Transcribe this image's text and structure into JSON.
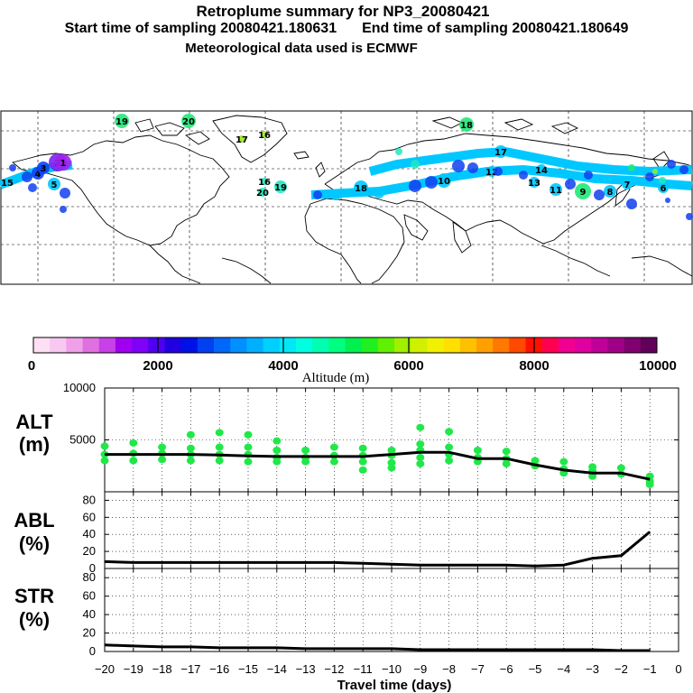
{
  "header": {
    "title": "Retroplume summary for NP3_20080421",
    "start_time": "Start time of sampling 20080421.180631",
    "end_time": "End time of sampling 20080421.180649",
    "met_data": "Meteorological data used is ECMWF"
  },
  "colorbar": {
    "title": "Altitude (m)",
    "tick_labels": [
      "0",
      "2000",
      "4000",
      "6000",
      "8000",
      "10000"
    ],
    "colors": [
      "#fde0f4",
      "#f8c8f0",
      "#f0a0e8",
      "#e070e0",
      "#c840e8",
      "#a000f0",
      "#8000f8",
      "#5000f0",
      "#2000e0",
      "#0010e8",
      "#0040f0",
      "#0068f8",
      "#0090ff",
      "#00b0ff",
      "#00d0ff",
      "#00e8f8",
      "#00ffe0",
      "#00ffb0",
      "#00ff80",
      "#00f050",
      "#20f020",
      "#60f000",
      "#a0f000",
      "#d0f000",
      "#f0f000",
      "#ffe000",
      "#ffc000",
      "#ffa000",
      "#ff7800",
      "#ff4800",
      "#ff1000",
      "#ff0050",
      "#f00090",
      "#e000a0",
      "#c00098",
      "#a00088",
      "#800070",
      "#600058"
    ]
  },
  "map_labels": [
    {
      "text": "19",
      "color": "#20e878"
    },
    {
      "text": "20",
      "color": "#20e878"
    },
    {
      "text": "18",
      "color": "#20e878"
    },
    {
      "text": "17",
      "color": "#a0e820"
    },
    {
      "text": "16",
      "color": "#a0e820"
    },
    {
      "text": "19",
      "color": "#20e8c0"
    },
    {
      "text": "20",
      "color": "#20e8c0"
    },
    {
      "text": "16",
      "color": "#20e8c0"
    },
    {
      "text": "15",
      "color": "#00c8ff"
    },
    {
      "text": "18",
      "color": "#00c8ff"
    },
    {
      "text": "17",
      "color": "#00c8ff"
    },
    {
      "text": "14",
      "color": "#00c8ff"
    },
    {
      "text": "13",
      "color": "#00c8ff"
    },
    {
      "text": "12",
      "color": "#00c8ff"
    },
    {
      "text": "11",
      "color": "#00c8ff"
    },
    {
      "text": "10",
      "color": "#00c8ff"
    },
    {
      "text": "9",
      "color": "#20e878"
    },
    {
      "text": "8",
      "color": "#00c8ff"
    },
    {
      "text": "7",
      "color": "#00c8ff"
    },
    {
      "text": "6",
      "color": "#00c8ff"
    },
    {
      "text": "5",
      "color": "#00c8ff"
    },
    {
      "text": "4",
      "color": "#1040f0"
    },
    {
      "text": "3",
      "color": "#1040f0"
    },
    {
      "text": "2",
      "color": "#8020f0"
    },
    {
      "text": "1",
      "color": "#a020f0"
    }
  ],
  "chart_data": [
    {
      "type": "line",
      "panel": "ALT",
      "ylabel": "ALT\n(m)",
      "ylabel_lines": [
        "ALT",
        "(m)"
      ],
      "ylim": [
        0,
        10000
      ],
      "yticks": [
        0,
        5000,
        10000
      ],
      "ytick_labels": [
        "5000",
        "10000"
      ],
      "x": [
        -20,
        -19,
        -18,
        -17,
        -16,
        -15,
        -14,
        -13,
        -12,
        -11,
        -10,
        -9,
        -8,
        -7,
        -6,
        -5,
        -4,
        -3,
        -2,
        -1
      ],
      "series": [
        {
          "name": "mean altitude",
          "values": [
            3600,
            3600,
            3600,
            3600,
            3550,
            3450,
            3400,
            3400,
            3400,
            3400,
            3600,
            3800,
            3800,
            3200,
            3200,
            2600,
            2100,
            1800,
            1800,
            1200
          ]
        }
      ],
      "scatter": {
        "name": "plume altitude distribution",
        "color": "#20e848",
        "points": [
          [
            -20,
            4400
          ],
          [
            -20,
            3600
          ],
          [
            -20,
            3000
          ],
          [
            -19,
            4700
          ],
          [
            -19,
            3700
          ],
          [
            -19,
            3000
          ],
          [
            -18,
            4300
          ],
          [
            -18,
            3700
          ],
          [
            -18,
            3100
          ],
          [
            -17,
            5500
          ],
          [
            -17,
            4200
          ],
          [
            -17,
            3600
          ],
          [
            -17,
            3000
          ],
          [
            -16,
            5700
          ],
          [
            -16,
            4300
          ],
          [
            -16,
            3600
          ],
          [
            -16,
            3000
          ],
          [
            -15,
            5500
          ],
          [
            -15,
            4300
          ],
          [
            -15,
            3600
          ],
          [
            -15,
            2900
          ],
          [
            -14,
            4900
          ],
          [
            -14,
            4000
          ],
          [
            -14,
            3300
          ],
          [
            -14,
            2900
          ],
          [
            -13,
            4000
          ],
          [
            -13,
            3300
          ],
          [
            -13,
            2900
          ],
          [
            -12,
            4300
          ],
          [
            -12,
            3500
          ],
          [
            -12,
            2900
          ],
          [
            -11,
            4200
          ],
          [
            -11,
            3500
          ],
          [
            -11,
            2900
          ],
          [
            -11,
            2100
          ],
          [
            -10,
            4000
          ],
          [
            -10,
            3500
          ],
          [
            -10,
            2800
          ],
          [
            -10,
            2300
          ],
          [
            -9,
            6200
          ],
          [
            -9,
            4600
          ],
          [
            -9,
            4000
          ],
          [
            -9,
            3300
          ],
          [
            -9,
            2700
          ],
          [
            -8,
            5800
          ],
          [
            -8,
            4300
          ],
          [
            -8,
            3600
          ],
          [
            -8,
            3000
          ],
          [
            -7,
            4000
          ],
          [
            -7,
            3300
          ],
          [
            -7,
            2900
          ],
          [
            -6,
            3900
          ],
          [
            -6,
            3200
          ],
          [
            -6,
            2700
          ],
          [
            -5,
            3000
          ],
          [
            -5,
            2500
          ],
          [
            -4,
            2900
          ],
          [
            -4,
            2200
          ],
          [
            -4,
            1800
          ],
          [
            -3,
            2400
          ],
          [
            -3,
            2000
          ],
          [
            -3,
            1500
          ],
          [
            -2,
            2300
          ],
          [
            -2,
            1700
          ],
          [
            -1,
            1500
          ],
          [
            -1,
            1000
          ],
          [
            -1,
            700
          ]
        ]
      }
    },
    {
      "type": "line",
      "panel": "ABL",
      "ylabel_lines": [
        "ABL",
        "(%)"
      ],
      "ylim": [
        0,
        90
      ],
      "yticks": [
        0,
        20,
        40,
        60,
        80
      ],
      "ytick_labels": [
        "0",
        "20",
        "40",
        "60",
        "80"
      ],
      "x": [
        -20,
        -19,
        -18,
        -17,
        -16,
        -15,
        -14,
        -13,
        -12,
        -11,
        -10,
        -9,
        -8,
        -7,
        -6,
        -5,
        -4,
        -3,
        -2,
        -1
      ],
      "series": [
        {
          "name": "ABL fraction",
          "values": [
            8,
            7,
            7,
            7,
            7,
            7,
            7,
            7,
            7,
            6,
            5,
            4,
            4,
            4,
            4,
            3,
            4,
            12,
            15,
            43
          ]
        }
      ]
    },
    {
      "type": "line",
      "panel": "STR",
      "ylabel_lines": [
        "STR",
        "(%)"
      ],
      "ylim": [
        0,
        90
      ],
      "yticks": [
        0,
        20,
        40,
        60,
        80
      ],
      "ytick_labels": [
        "0",
        "20",
        "40",
        "60",
        "80"
      ],
      "x": [
        -20,
        -19,
        -18,
        -17,
        -16,
        -15,
        -14,
        -13,
        -12,
        -11,
        -10,
        -9,
        -8,
        -7,
        -6,
        -5,
        -4,
        -3,
        -2,
        -1
      ],
      "series": [
        {
          "name": "stratospheric fraction",
          "values": [
            7,
            6,
            5,
            5,
            4,
            4,
            4,
            3,
            3,
            3,
            3,
            2,
            2,
            2,
            2,
            2,
            2,
            2,
            1,
            1
          ]
        }
      ]
    }
  ],
  "xaxis": {
    "label": "Travel time (days)",
    "ticks": [
      -20,
      -19,
      -18,
      -17,
      -16,
      -15,
      -14,
      -13,
      -12,
      -11,
      -10,
      -9,
      -8,
      -7,
      -6,
      -5,
      -4,
      -3,
      -2,
      -1,
      0
    ],
    "tick_labels": [
      "−20",
      "−19",
      "−18",
      "−17",
      "−16",
      "−15",
      "−14",
      "−13",
      "−12",
      "−11",
      "−10",
      "−9",
      "−8",
      "−7",
      "−6",
      "−5",
      "−4",
      "−3",
      "−2",
      "−1",
      "0"
    ]
  }
}
